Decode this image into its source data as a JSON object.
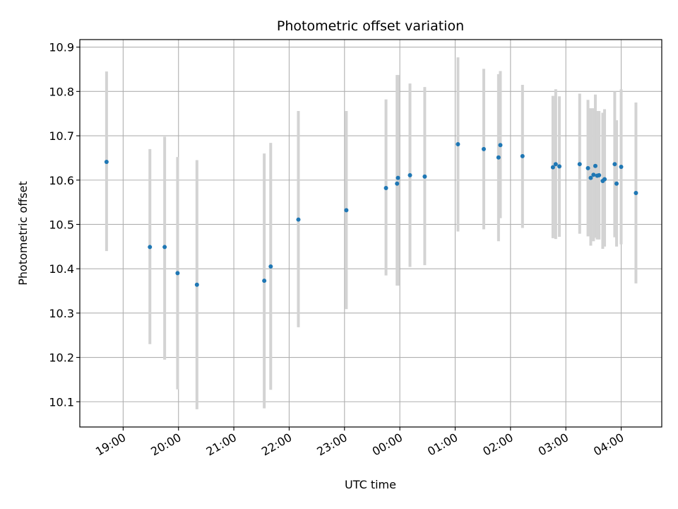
{
  "chart_data": {
    "type": "scatter",
    "title": "Photometric offset variation",
    "xlabel": "UTC time",
    "ylabel": "Photometric offset",
    "x_axis_kind": "time",
    "xlim": [
      "18:13",
      "04:44"
    ],
    "ylim": [
      10.043,
      10.917
    ],
    "x_ticks": [
      "19:00",
      "20:00",
      "21:00",
      "22:00",
      "23:00",
      "00:00",
      "01:00",
      "02:00",
      "03:00",
      "04:00"
    ],
    "y_ticks": [
      10.1,
      10.2,
      10.3,
      10.4,
      10.5,
      10.6,
      10.7,
      10.8,
      10.9
    ],
    "y_tick_labels": [
      "10.1",
      "10.2",
      "10.3",
      "10.4",
      "10.5",
      "10.6",
      "10.7",
      "10.8",
      "10.9"
    ],
    "grid": true,
    "error_bar_color": "#d3d3d3",
    "point_color": "#1f77b4",
    "points": [
      {
        "time": "18:42",
        "y": 10.641,
        "low": 10.44,
        "high": 10.845
      },
      {
        "time": "19:29",
        "y": 10.449,
        "low": 10.23,
        "high": 10.67
      },
      {
        "time": "19:45",
        "y": 10.449,
        "low": 10.195,
        "high": 10.698
      },
      {
        "time": "19:59",
        "y": 10.39,
        "low": 10.128,
        "high": 10.652
      },
      {
        "time": "20:20",
        "y": 10.364,
        "low": 10.083,
        "high": 10.645
      },
      {
        "time": "21:33",
        "y": 10.373,
        "low": 10.085,
        "high": 10.66
      },
      {
        "time": "21:40",
        "y": 10.405,
        "low": 10.127,
        "high": 10.684
      },
      {
        "time": "22:10",
        "y": 10.511,
        "low": 10.268,
        "high": 10.756
      },
      {
        "time": "23:02",
        "y": 10.532,
        "low": 10.309,
        "high": 10.756
      },
      {
        "time": "23:45",
        "y": 10.582,
        "low": 10.385,
        "high": 10.782
      },
      {
        "time": "23:57",
        "y": 10.592,
        "low": 10.362,
        "high": 10.837
      },
      {
        "time": "23:58",
        "y": 10.605,
        "low": 10.362,
        "high": 10.837
      },
      {
        "time": "00:11",
        "y": 10.611,
        "low": 10.404,
        "high": 10.818
      },
      {
        "time": "00:27",
        "y": 10.608,
        "low": 10.408,
        "high": 10.81
      },
      {
        "time": "01:03",
        "y": 10.681,
        "low": 10.484,
        "high": 10.877
      },
      {
        "time": "01:31",
        "y": 10.67,
        "low": 10.489,
        "high": 10.851
      },
      {
        "time": "01:47",
        "y": 10.651,
        "low": 10.462,
        "high": 10.839
      },
      {
        "time": "01:49",
        "y": 10.679,
        "low": 10.514,
        "high": 10.846
      },
      {
        "time": "02:13",
        "y": 10.654,
        "low": 10.492,
        "high": 10.815
      },
      {
        "time": "02:46",
        "y": 10.629,
        "low": 10.469,
        "high": 10.79
      },
      {
        "time": "02:49",
        "y": 10.636,
        "low": 10.467,
        "high": 10.805
      },
      {
        "time": "02:53",
        "y": 10.631,
        "low": 10.472,
        "high": 10.789
      },
      {
        "time": "03:15",
        "y": 10.636,
        "low": 10.479,
        "high": 10.795
      },
      {
        "time": "03:24",
        "y": 10.627,
        "low": 10.473,
        "high": 10.781
      },
      {
        "time": "03:27",
        "y": 10.605,
        "low": 10.452,
        "high": 10.762
      },
      {
        "time": "03:30",
        "y": 10.612,
        "low": 10.462,
        "high": 10.762
      },
      {
        "time": "03:32",
        "y": 10.632,
        "low": 10.47,
        "high": 10.793
      },
      {
        "time": "03:34",
        "y": 10.61,
        "low": 10.466,
        "high": 10.756
      },
      {
        "time": "03:36",
        "y": 10.611,
        "low": 10.466,
        "high": 10.756
      },
      {
        "time": "03:40",
        "y": 10.598,
        "low": 10.445,
        "high": 10.752
      },
      {
        "time": "03:42",
        "y": 10.602,
        "low": 10.45,
        "high": 10.76
      },
      {
        "time": "03:53",
        "y": 10.636,
        "low": 10.471,
        "high": 10.8
      },
      {
        "time": "03:55",
        "y": 10.592,
        "low": 10.45,
        "high": 10.735
      },
      {
        "time": "04:00",
        "y": 10.63,
        "low": 10.455,
        "high": 10.805
      },
      {
        "time": "04:16",
        "y": 10.571,
        "low": 10.367,
        "high": 10.775
      }
    ]
  }
}
